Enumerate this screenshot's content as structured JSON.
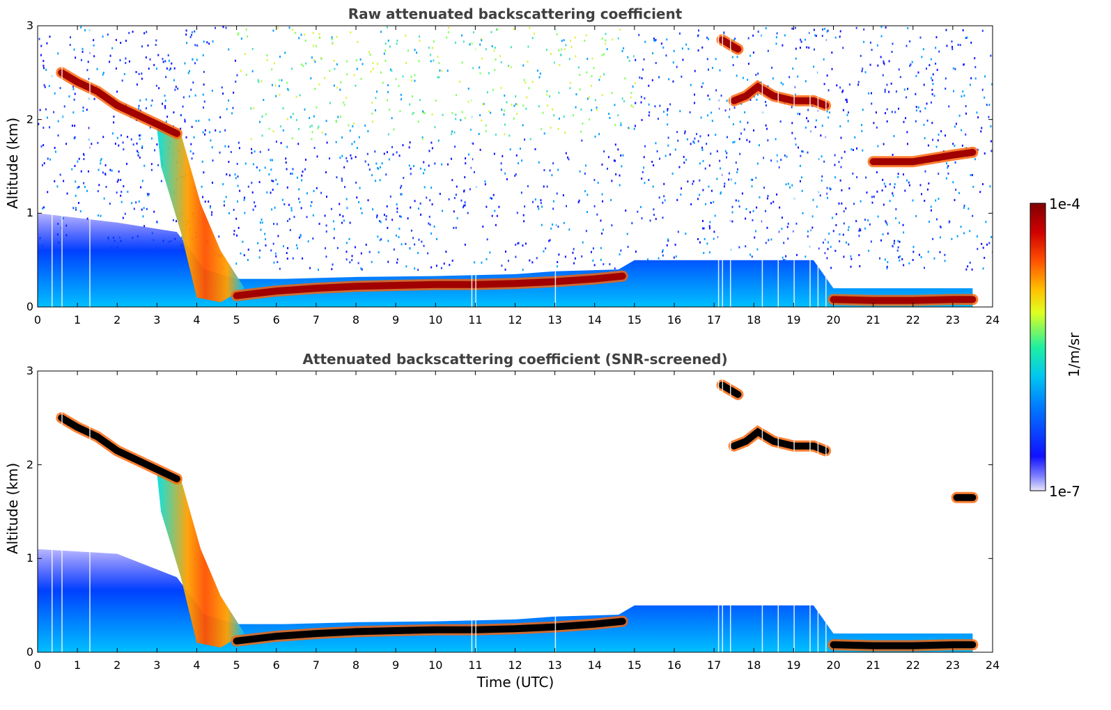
{
  "chart_data": [
    {
      "type": "heatmap",
      "title": "Raw attenuated backscattering coefficient",
      "xlabel": "",
      "ylabel": "Altitude (km)",
      "xlim": [
        0,
        24
      ],
      "ylim": [
        0,
        3
      ],
      "xticks": [
        "0",
        "1",
        "2",
        "3",
        "4",
        "5",
        "6",
        "7",
        "8",
        "9",
        "10",
        "11",
        "12",
        "13",
        "14",
        "15",
        "16",
        "17",
        "18",
        "19",
        "20",
        "21",
        "22",
        "23",
        "24"
      ],
      "yticks": [
        "0",
        "1",
        "2",
        "3"
      ],
      "layers": [
        {
          "name": "cloud-base-descending",
          "x": [
            0.6,
            1.0,
            1.5,
            2.0,
            2.5,
            3.0,
            3.5
          ],
          "y": [
            2.5,
            2.4,
            2.3,
            2.15,
            2.05,
            1.95,
            1.85
          ]
        },
        {
          "name": "boundary-layer-top",
          "x": [
            5.0,
            6.0,
            7.0,
            8.0,
            9.0,
            10.0,
            11.0,
            12.0,
            13.0,
            14.0,
            14.7
          ],
          "y": [
            0.12,
            0.17,
            0.2,
            0.22,
            0.23,
            0.24,
            0.24,
            0.25,
            0.27,
            0.3,
            0.33
          ]
        },
        {
          "name": "high-cloud-1",
          "x": [
            17.2,
            17.6
          ],
          "y": [
            2.85,
            2.75
          ]
        },
        {
          "name": "high-cloud-2",
          "x": [
            17.5,
            17.8,
            18.1,
            18.5,
            19.0,
            19.5,
            19.8
          ],
          "y": [
            2.2,
            2.25,
            2.35,
            2.25,
            2.2,
            2.2,
            2.15
          ]
        },
        {
          "name": "low-cloud-late",
          "x": [
            20.0,
            21.0,
            22.0,
            23.0,
            23.5
          ],
          "y": [
            0.08,
            0.07,
            0.07,
            0.08,
            0.08
          ]
        },
        {
          "name": "late-layer",
          "x": [
            21.0,
            22.0,
            23.0,
            23.5
          ],
          "y": [
            1.55,
            1.55,
            1.62,
            1.65
          ]
        }
      ]
    },
    {
      "type": "heatmap",
      "title": "Attenuated backscattering coefficient (SNR-screened)",
      "xlabel": "Time (UTC)",
      "ylabel": "Altitude (km)",
      "xlim": [
        0,
        24
      ],
      "ylim": [
        0,
        3
      ],
      "xticks": [
        "0",
        "1",
        "2",
        "3",
        "4",
        "5",
        "6",
        "7",
        "8",
        "9",
        "10",
        "11",
        "12",
        "13",
        "14",
        "15",
        "16",
        "17",
        "18",
        "19",
        "20",
        "21",
        "22",
        "23",
        "24"
      ],
      "yticks": [
        "0",
        "1",
        "2",
        "3"
      ],
      "layers": [
        {
          "name": "cloud-base-descending",
          "x": [
            0.6,
            1.0,
            1.5,
            2.0,
            2.5,
            3.0,
            3.5
          ],
          "y": [
            2.5,
            2.4,
            2.3,
            2.15,
            2.05,
            1.95,
            1.85
          ]
        },
        {
          "name": "boundary-layer-top",
          "x": [
            5.0,
            6.0,
            7.0,
            8.0,
            9.0,
            10.0,
            11.0,
            12.0,
            13.0,
            14.0,
            14.7
          ],
          "y": [
            0.12,
            0.17,
            0.2,
            0.22,
            0.23,
            0.24,
            0.24,
            0.25,
            0.27,
            0.3,
            0.33
          ]
        },
        {
          "name": "high-cloud-1",
          "x": [
            17.2,
            17.6
          ],
          "y": [
            2.85,
            2.75
          ]
        },
        {
          "name": "high-cloud-2",
          "x": [
            17.5,
            17.8,
            18.1,
            18.5,
            19.0,
            19.5,
            19.8
          ],
          "y": [
            2.2,
            2.25,
            2.35,
            2.25,
            2.2,
            2.2,
            2.15
          ]
        },
        {
          "name": "low-cloud-late",
          "x": [
            20.0,
            21.0,
            22.0,
            23.0,
            23.5
          ],
          "y": [
            0.08,
            0.07,
            0.07,
            0.08,
            0.08
          ]
        },
        {
          "name": "late-layer",
          "x": [
            23.1,
            23.5
          ],
          "y": [
            1.65,
            1.65
          ]
        }
      ]
    }
  ],
  "colorbar": {
    "label": "1/m/sr",
    "max_label": "1e-4",
    "min_label": "1e-7",
    "colors": [
      "#e6e6fa",
      "#1010ff",
      "#00a0ff",
      "#00e0e0",
      "#40ff80",
      "#ffff00",
      "#ff8000",
      "#ff2000",
      "#a00000",
      "#800000"
    ]
  }
}
